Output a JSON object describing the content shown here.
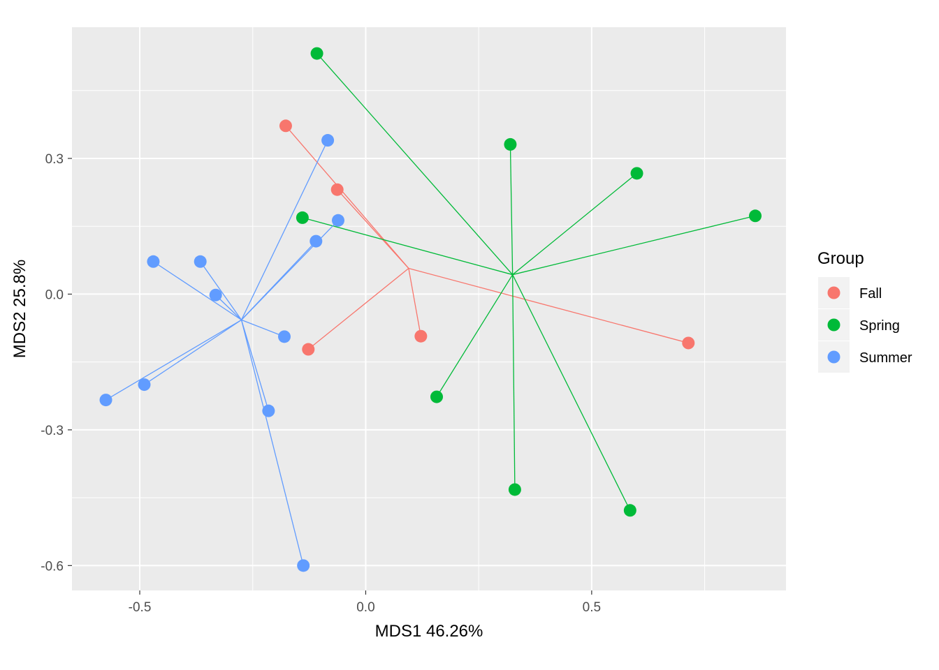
{
  "chart_data": {
    "type": "scatter",
    "xlabel": "MDS1 46.26%",
    "ylabel": "MDS2 25.8%",
    "xlim": [
      -0.65,
      0.93
    ],
    "ylim": [
      -0.655,
      0.59
    ],
    "x_ticks": [
      -0.5,
      0.0,
      0.5
    ],
    "x_tick_labels": [
      "-0.5",
      "0.0",
      "0.5"
    ],
    "y_ticks": [
      -0.6,
      -0.3,
      0.0,
      0.3
    ],
    "y_tick_labels": [
      "-0.6",
      "-0.3",
      "0.0",
      "0.3"
    ],
    "grid": true,
    "panel_background": "#EBEBEB",
    "grid_color": "#FFFFFF",
    "legend": {
      "title": "Group",
      "placement": "right",
      "entries": [
        "Fall",
        "Spring",
        "Summer"
      ]
    },
    "series": [
      {
        "name": "Fall",
        "color": "#F8766D",
        "centroid": [
          0.095,
          0.057
        ],
        "points": [
          [
            -0.177,
            0.372
          ],
          [
            -0.063,
            0.231
          ],
          [
            0.122,
            -0.093
          ],
          [
            -0.127,
            -0.122
          ],
          [
            0.714,
            -0.108
          ]
        ]
      },
      {
        "name": "Spring",
        "color": "#00BA38",
        "centroid": [
          0.325,
          0.043
        ],
        "points": [
          [
            -0.108,
            0.532
          ],
          [
            0.32,
            0.331
          ],
          [
            0.6,
            0.267
          ],
          [
            0.862,
            0.173
          ],
          [
            -0.14,
            0.169
          ],
          [
            0.157,
            -0.227
          ],
          [
            0.33,
            -0.432
          ],
          [
            0.585,
            -0.478
          ]
        ]
      },
      {
        "name": "Summer",
        "color": "#619CFF",
        "centroid": [
          -0.275,
          -0.057
        ],
        "points": [
          [
            -0.084,
            0.34
          ],
          [
            -0.061,
            0.163
          ],
          [
            -0.11,
            0.117
          ],
          [
            -0.47,
            0.072
          ],
          [
            -0.366,
            0.072
          ],
          [
            -0.332,
            -0.002
          ],
          [
            -0.18,
            -0.094
          ],
          [
            -0.49,
            -0.2
          ],
          [
            -0.575,
            -0.234
          ],
          [
            -0.215,
            -0.258
          ],
          [
            -0.138,
            -0.6
          ]
        ]
      }
    ]
  }
}
